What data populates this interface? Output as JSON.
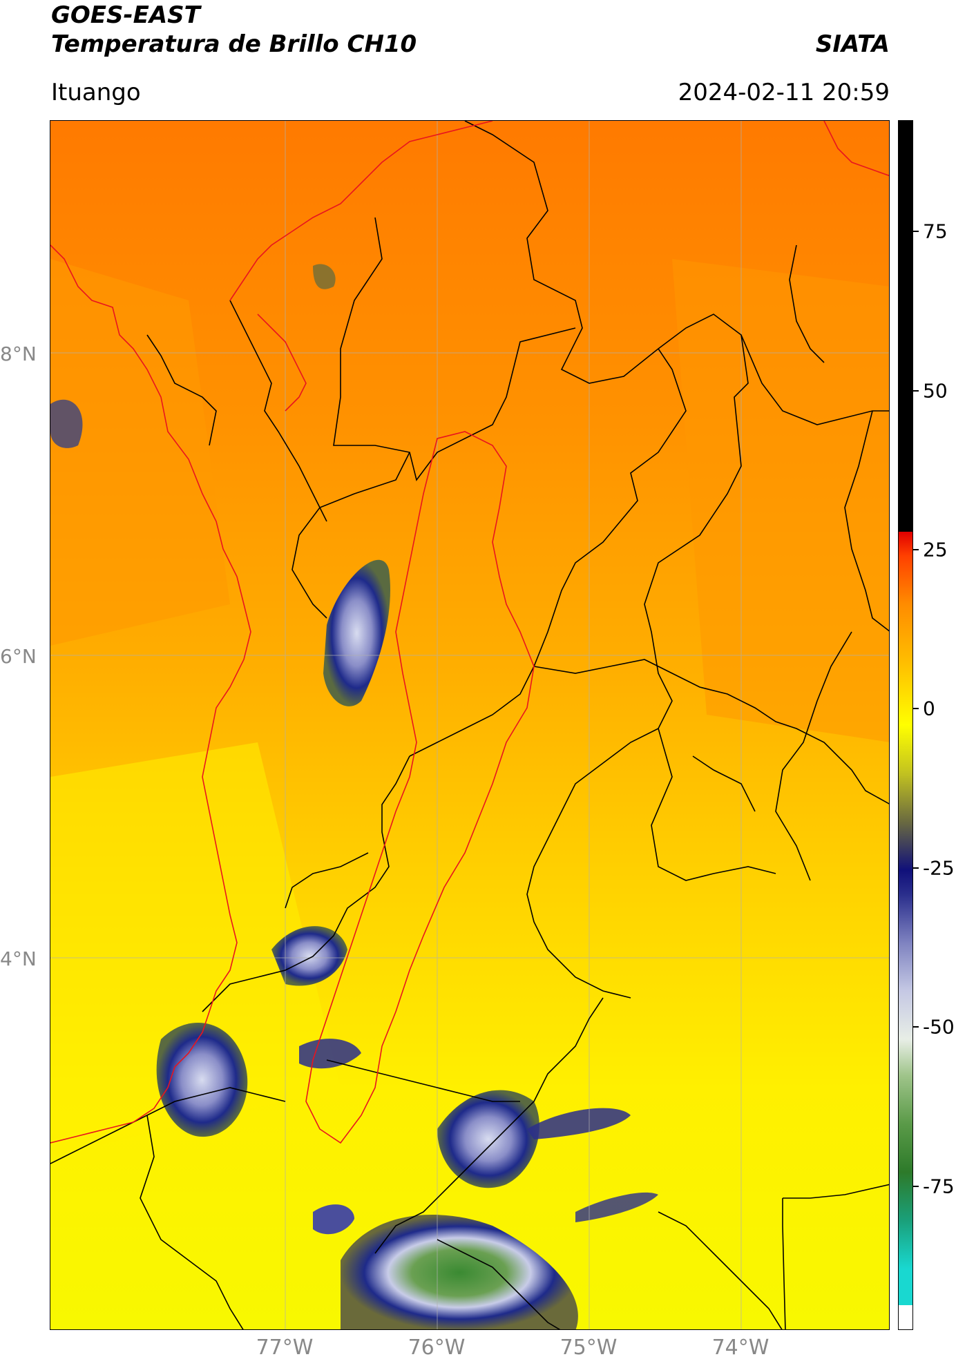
{
  "header": {
    "satellite": "GOES-EAST",
    "product": "Temperatura de Brillo CH10",
    "organization": "SIATA",
    "region": "Ituango",
    "datetime": "2024-02-11 20:59"
  },
  "map": {
    "lat_labels": [
      "8°N",
      "6°N",
      "4°N"
    ],
    "lon_labels": [
      "77°W",
      "76°W",
      "75°W",
      "74°W"
    ],
    "colors": {
      "country_border": "#000000",
      "highlight_border": "#e8141e",
      "gridline": "#b0b0b0"
    }
  },
  "colorbar": {
    "tick_labels": [
      "75",
      "50",
      "25",
      "0",
      "-25",
      "-50",
      "-75"
    ],
    "colors": [
      "#ffffff",
      "#19d8d0",
      "#1aa07a",
      "#2d7a2a",
      "#5a9a48",
      "#9fc48a",
      "#e8eee6",
      "#c5c8e4",
      "#7e82c0",
      "#2a2e8c",
      "#10107a",
      "#6a6a40",
      "#c2c220",
      "#ffff00",
      "#ffc000",
      "#ff8c00",
      "#ff4000",
      "#e00000",
      "#000000"
    ]
  }
}
